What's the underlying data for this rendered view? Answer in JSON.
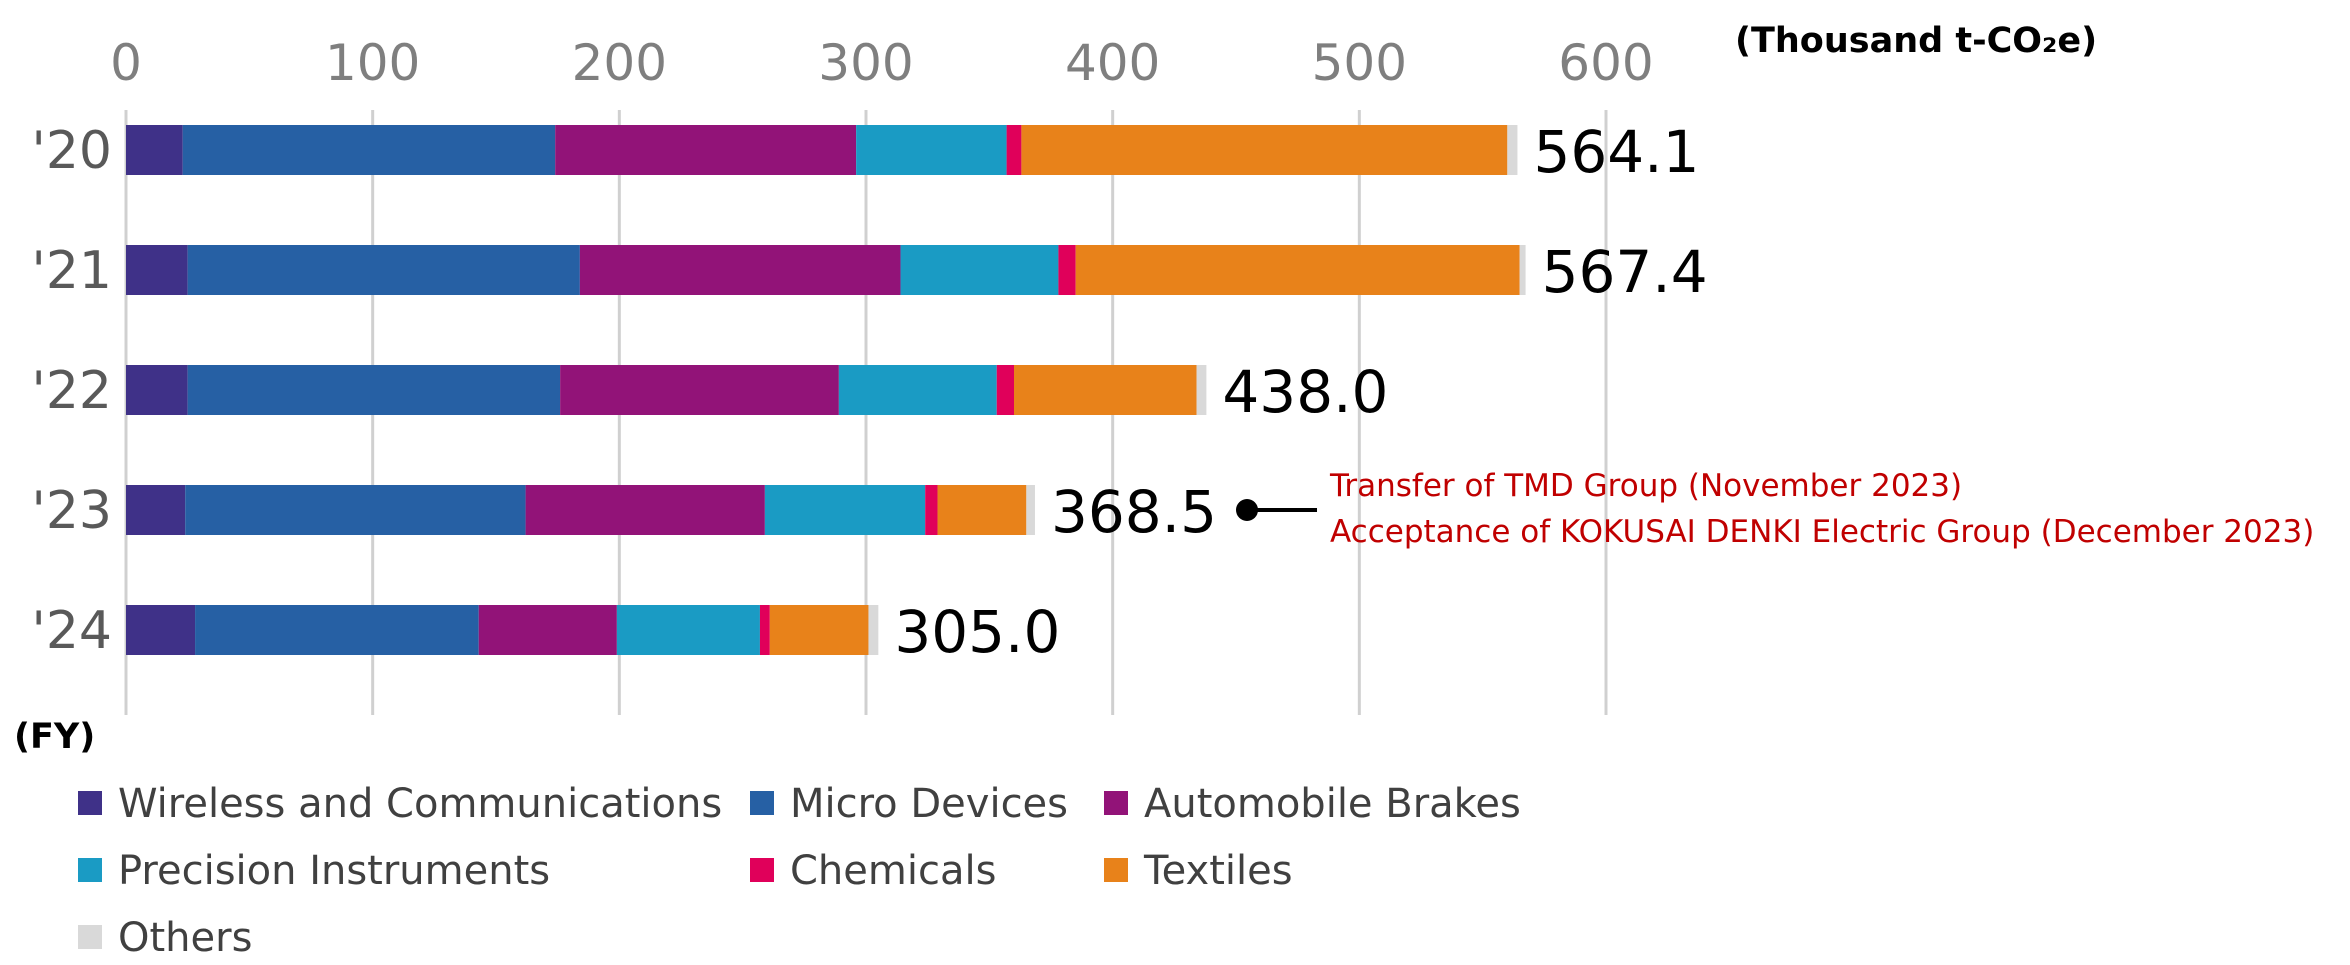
{
  "chart_data": {
    "type": "bar",
    "orientation": "horizontal",
    "stacked": true,
    "unit_label": "(Thousand t-CO₂e)",
    "ylabel": "(FY)",
    "xlim": [
      0,
      600
    ],
    "xticks": [
      0,
      100,
      200,
      300,
      400,
      500,
      600
    ],
    "categories": [
      "'20",
      "'21",
      "'22",
      "'23",
      "'24"
    ],
    "totals": [
      "564.1",
      "567.4",
      "438.0",
      "368.5",
      "305.0"
    ],
    "series": [
      {
        "name": "Wireless and Communications",
        "color": "#3f3188",
        "values": [
          23,
          25,
          25,
          24,
          28
        ]
      },
      {
        "name": "Micro Devices",
        "color": "#2660a4",
        "values": [
          151,
          159,
          151,
          138,
          115
        ]
      },
      {
        "name": "Automobile Brakes",
        "color": "#921378",
        "values": [
          122,
          130,
          113,
          97,
          56
        ]
      },
      {
        "name": "Precision Instruments",
        "color": "#1a9bc4",
        "values": [
          61,
          64,
          64,
          65,
          58
        ]
      },
      {
        "name": "Chemicals",
        "color": "#e0005a",
        "values": [
          6,
          7,
          7,
          5,
          4
        ]
      },
      {
        "name": "Textiles",
        "color": "#e8821a",
        "values": [
          197,
          180,
          74,
          36,
          40
        ]
      },
      {
        "name": "Others",
        "color": "#d9d9d9",
        "values": [
          4.1,
          2.4,
          4.0,
          3.5,
          4.0
        ]
      }
    ],
    "annotation": {
      "category": "'23",
      "lines": [
        "Transfer of TMD Group (November 2023)",
        "Acceptance of KOKUSAI DENKI Electric Group (December 2023)"
      ],
      "color": "#c00000"
    },
    "legend_position": "bottom-left",
    "grid": "vertical"
  }
}
